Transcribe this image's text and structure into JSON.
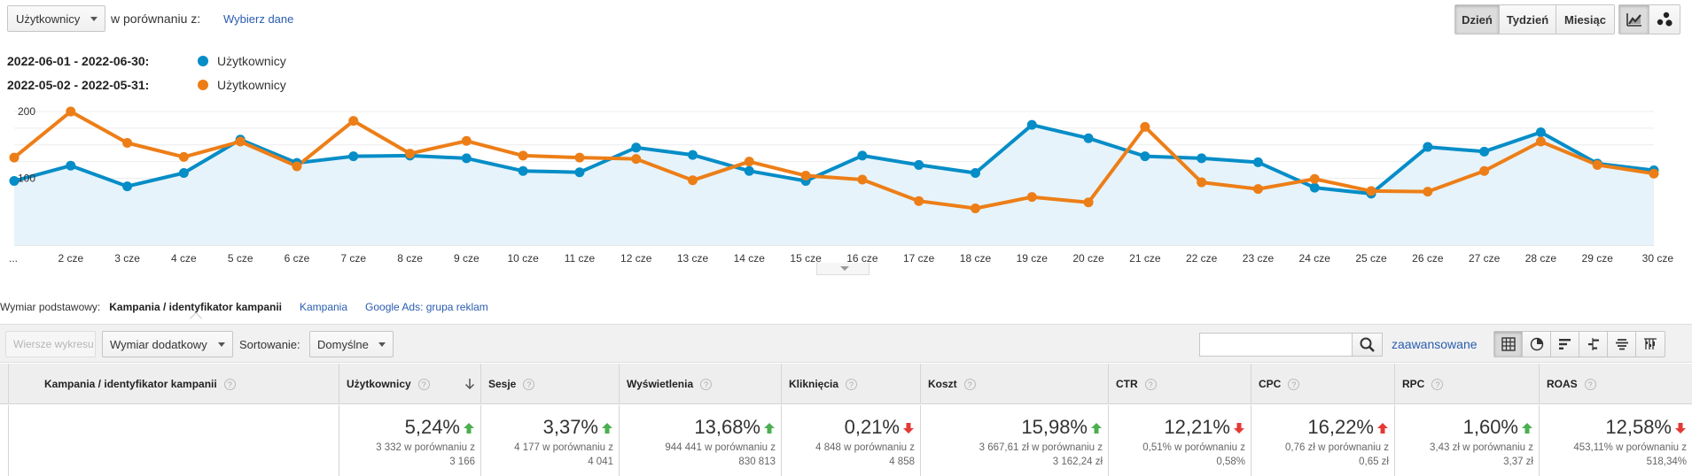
{
  "header": {
    "metric_select": "Użytkownicy",
    "compare_label": "w porównaniu z:",
    "compare_link": "Wybierz dane",
    "granularity": [
      {
        "label": "Dzień",
        "active": true
      },
      {
        "label": "Tydzień",
        "active": false
      },
      {
        "label": "Miesiąc",
        "active": false
      }
    ],
    "chart_modes": [
      {
        "icon": "line-chart-icon",
        "active": true
      },
      {
        "icon": "motion-chart-icon",
        "active": false
      }
    ]
  },
  "legend": [
    {
      "range": "2022-06-01 - 2022-06-30:",
      "name": "Użytkownicy",
      "color": "#058dc7"
    },
    {
      "range": "2022-05-02 - 2022-05-31:",
      "name": "Użytkownicy",
      "color": "#ed7e17"
    }
  ],
  "chart_data": {
    "type": "line",
    "x": [
      "...",
      "2 cze",
      "3 cze",
      "4 cze",
      "5 cze",
      "6 cze",
      "7 cze",
      "8 cze",
      "9 cze",
      "10 cze",
      "11 cze",
      "12 cze",
      "13 cze",
      "14 cze",
      "15 cze",
      "16 cze",
      "17 cze",
      "18 cze",
      "19 cze",
      "20 cze",
      "21 cze",
      "22 cze",
      "23 cze",
      "24 cze",
      "25 cze",
      "26 cze",
      "27 cze",
      "28 cze",
      "29 cze",
      "30 cze"
    ],
    "y_ticks": [
      100,
      200
    ],
    "ylim": [
      0,
      212
    ],
    "grid": true,
    "series": [
      {
        "name": "Użytkownicy",
        "range": "2022-06-01 - 2022-06-30",
        "color": "#058dc7",
        "fill": true,
        "values": [
          96,
          119,
          88,
          108,
          158,
          123,
          133,
          134,
          130,
          111,
          109,
          146,
          135,
          111,
          96,
          134,
          120,
          108,
          180,
          160,
          133,
          130,
          124,
          86,
          77,
          147,
          140,
          169,
          122,
          112
        ]
      },
      {
        "name": "Użytkownicy",
        "range": "2022-05-02 - 2022-05-31",
        "color": "#ed7e17",
        "fill": false,
        "values": [
          131,
          200,
          153,
          132,
          155,
          118,
          186,
          137,
          156,
          134,
          131,
          129,
          97,
          125,
          104,
          98,
          66,
          55,
          72,
          64,
          177,
          94,
          84,
          99,
          81,
          80,
          111,
          155,
          120,
          107
        ]
      }
    ]
  },
  "dimensions": {
    "label": "Wymiar podstawowy:",
    "current": "Kampania / identyfikator kampanii",
    "links": [
      "Kampania",
      "Google Ads: grupa reklam"
    ]
  },
  "toolbar": {
    "plot_rows": "Wiersze wykresu",
    "secondary_dimension": "Wymiar dodatkowy",
    "sort_label": "Sortowanie:",
    "sort_value": "Domyślne",
    "search_placeholder": "",
    "advanced_link": "zaawansowane",
    "view_icons": [
      "table-view-icon",
      "pie-view-icon",
      "performance-view-icon",
      "comparison-view-icon",
      "term-cloud-view-icon",
      "pivot-view-icon"
    ]
  },
  "table": {
    "dimension_header": "Kampania / identyfikator kampanii",
    "columns": [
      {
        "label": "Użytkownicy",
        "sorted": true,
        "pct": "5,24%",
        "dir": "up",
        "good": true,
        "line1": "3 332 w porównaniu z",
        "line2": "3 166"
      },
      {
        "label": "Sesje",
        "sorted": false,
        "pct": "3,37%",
        "dir": "up",
        "good": true,
        "line1": "4 177 w porównaniu z",
        "line2": "4 041"
      },
      {
        "label": "Wyświetlenia",
        "sorted": false,
        "pct": "13,68%",
        "dir": "up",
        "good": true,
        "line1": "944 441 w porównaniu z",
        "line2": "830 813"
      },
      {
        "label": "Kliknięcia",
        "sorted": false,
        "pct": "0,21%",
        "dir": "down",
        "good": false,
        "line1": "4 848 w porównaniu z",
        "line2": "4 858"
      },
      {
        "label": "Koszt",
        "sorted": false,
        "pct": "15,98%",
        "dir": "up",
        "good": true,
        "line1": "3 667,61 zł w porównaniu z",
        "line2": "3 162,24 zł"
      },
      {
        "label": "CTR",
        "sorted": false,
        "pct": "12,21%",
        "dir": "down",
        "good": false,
        "line1": "0,51% w porównaniu z",
        "line2": "0,58%"
      },
      {
        "label": "CPC",
        "sorted": false,
        "pct": "16,22%",
        "dir": "up",
        "good": false,
        "line1": "0,76 zł w porównaniu z",
        "line2": "0,65 zł"
      },
      {
        "label": "RPC",
        "sorted": false,
        "pct": "1,60%",
        "dir": "up",
        "good": true,
        "line1": "3,43 zł w porównaniu z",
        "line2": "3,37 zł"
      },
      {
        "label": "ROAS",
        "sorted": false,
        "pct": "12,58%",
        "dir": "down",
        "good": false,
        "line1": "453,11% w porównaniu z",
        "line2": "518,34%"
      }
    ]
  },
  "colors": {
    "up": "#4caf50",
    "down": "#e53935",
    "link": "#2a5db0"
  }
}
